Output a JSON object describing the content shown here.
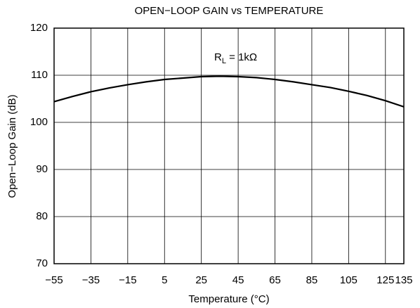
{
  "chart_data": {
    "type": "line",
    "title": "OPEN−LOOP GAIN vs TEMPERATURE",
    "xlabel": "Temperature (°C)",
    "ylabel": "Open−Loop Gain (dB)",
    "annotation": [
      "R",
      "L",
      " = 1kΩ"
    ],
    "x": [
      -55,
      -45,
      -35,
      -25,
      -15,
      -5,
      5,
      15,
      25,
      35,
      45,
      55,
      65,
      75,
      85,
      95,
      105,
      115,
      125,
      135
    ],
    "series": [
      {
        "color": "#000000",
        "values": [
          104.4,
          105.5,
          106.5,
          107.3,
          108.0,
          108.6,
          109.1,
          109.4,
          109.7,
          109.8,
          109.7,
          109.5,
          109.1,
          108.6,
          108.0,
          107.4,
          106.6,
          105.7,
          104.6,
          103.3
        ]
      }
    ],
    "xlim": [
      -55,
      135
    ],
    "xticks": [
      {
        "value": -55,
        "label": "−55"
      },
      {
        "value": -35,
        "label": "−35"
      },
      {
        "value": -15,
        "label": "−15"
      },
      5,
      25,
      45,
      65,
      85,
      105,
      125,
      135
    ],
    "ylim": [
      70,
      120
    ],
    "yticks": [
      70,
      80,
      90,
      100,
      110,
      120
    ],
    "grid": true
  }
}
